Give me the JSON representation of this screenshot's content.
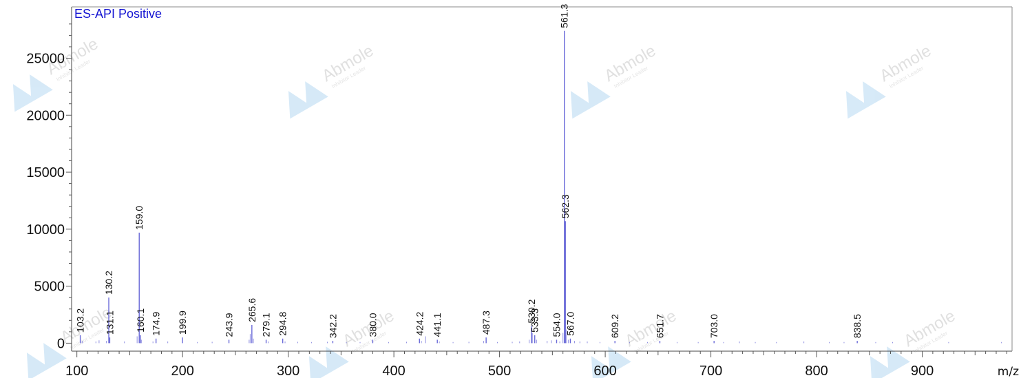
{
  "chart_data": {
    "type": "bar",
    "title": "ES-API Positive",
    "xlabel": "m/z",
    "ylabel": "",
    "xlim": [
      95,
      985
    ],
    "ylim": [
      -700,
      29500
    ],
    "x_ticks": [
      100,
      200,
      300,
      400,
      500,
      600,
      700,
      800,
      900
    ],
    "y_ticks": [
      0,
      5000,
      10000,
      15000,
      20000,
      25000
    ],
    "grid": false,
    "colors": {
      "title": "#1414d2",
      "peaks": "#6a6ad8",
      "axis": "#555555"
    },
    "labeled_peaks": [
      {
        "x": 103.2,
        "y": 700,
        "label": "103.2"
      },
      {
        "x": 130.2,
        "y": 4000,
        "label": "130.2"
      },
      {
        "x": 131.1,
        "y": 500,
        "label": "131.1"
      },
      {
        "x": 159.0,
        "y": 9700,
        "label": "159.0"
      },
      {
        "x": 160.1,
        "y": 700,
        "label": "160.1"
      },
      {
        "x": 174.9,
        "y": 400,
        "label": "174.9"
      },
      {
        "x": 199.9,
        "y": 500,
        "label": "199.9"
      },
      {
        "x": 243.9,
        "y": 300,
        "label": "243.9"
      },
      {
        "x": 265.6,
        "y": 1600,
        "label": "265.6"
      },
      {
        "x": 279.1,
        "y": 300,
        "label": "279.1"
      },
      {
        "x": 294.8,
        "y": 400,
        "label": "294.8"
      },
      {
        "x": 342.2,
        "y": 200,
        "label": "342.2"
      },
      {
        "x": 380.0,
        "y": 300,
        "label": "380.0"
      },
      {
        "x": 424.2,
        "y": 400,
        "label": "424.2"
      },
      {
        "x": 441.1,
        "y": 300,
        "label": "441.1"
      },
      {
        "x": 487.3,
        "y": 500,
        "label": "487.3"
      },
      {
        "x": 530.2,
        "y": 1500,
        "label": "530.2"
      },
      {
        "x": 533.3,
        "y": 700,
        "label": "533.3"
      },
      {
        "x": 554.0,
        "y": 300,
        "label": "554.0"
      },
      {
        "x": 561.3,
        "y": 27400,
        "label": "561.3"
      },
      {
        "x": 562.3,
        "y": 10700,
        "label": "562.3"
      },
      {
        "x": 567.0,
        "y": 400,
        "label": "567.0"
      },
      {
        "x": 609.2,
        "y": 200,
        "label": "609.2"
      },
      {
        "x": 651.7,
        "y": 200,
        "label": "651.7"
      },
      {
        "x": 703.0,
        "y": 200,
        "label": "703.0"
      },
      {
        "x": 838.5,
        "y": 200,
        "label": "838.5"
      }
    ],
    "minor_peaks": [
      {
        "x": 105,
        "y": 200
      },
      {
        "x": 118,
        "y": 150
      },
      {
        "x": 121,
        "y": 250
      },
      {
        "x": 128,
        "y": 200
      },
      {
        "x": 145,
        "y": 150
      },
      {
        "x": 157,
        "y": 600
      },
      {
        "x": 161,
        "y": 300
      },
      {
        "x": 172,
        "y": 150
      },
      {
        "x": 186,
        "y": 150
      },
      {
        "x": 214,
        "y": 100
      },
      {
        "x": 228,
        "y": 120
      },
      {
        "x": 263,
        "y": 300
      },
      {
        "x": 264,
        "y": 800
      },
      {
        "x": 267,
        "y": 400
      },
      {
        "x": 281,
        "y": 150
      },
      {
        "x": 297,
        "y": 150
      },
      {
        "x": 309,
        "y": 120
      },
      {
        "x": 322,
        "y": 100
      },
      {
        "x": 337,
        "y": 120
      },
      {
        "x": 355,
        "y": 100
      },
      {
        "x": 368,
        "y": 100
      },
      {
        "x": 395,
        "y": 100
      },
      {
        "x": 412,
        "y": 120
      },
      {
        "x": 426,
        "y": 200
      },
      {
        "x": 430,
        "y": 600
      },
      {
        "x": 443,
        "y": 150
      },
      {
        "x": 456,
        "y": 100
      },
      {
        "x": 471,
        "y": 120
      },
      {
        "x": 485,
        "y": 200
      },
      {
        "x": 498,
        "y": 100
      },
      {
        "x": 512,
        "y": 120
      },
      {
        "x": 519,
        "y": 150
      },
      {
        "x": 528,
        "y": 300
      },
      {
        "x": 531,
        "y": 900
      },
      {
        "x": 535,
        "y": 300
      },
      {
        "x": 545,
        "y": 200
      },
      {
        "x": 549,
        "y": 250
      },
      {
        "x": 557,
        "y": 150
      },
      {
        "x": 560,
        "y": 900
      },
      {
        "x": 563,
        "y": 1200
      },
      {
        "x": 565,
        "y": 300
      },
      {
        "x": 571,
        "y": 200
      },
      {
        "x": 576,
        "y": 150
      },
      {
        "x": 583,
        "y": 150
      },
      {
        "x": 595,
        "y": 100
      },
      {
        "x": 623,
        "y": 100
      },
      {
        "x": 640,
        "y": 100
      },
      {
        "x": 668,
        "y": 100
      },
      {
        "x": 688,
        "y": 100
      },
      {
        "x": 712,
        "y": 100
      },
      {
        "x": 727,
        "y": 150
      },
      {
        "x": 742,
        "y": 100
      },
      {
        "x": 762,
        "y": 100
      },
      {
        "x": 788,
        "y": 150
      },
      {
        "x": 812,
        "y": 100
      },
      {
        "x": 826,
        "y": 100
      },
      {
        "x": 856,
        "y": 100
      },
      {
        "x": 872,
        "y": 100
      },
      {
        "x": 925,
        "y": 100
      },
      {
        "x": 975,
        "y": 100
      }
    ],
    "watermark": {
      "text": "Abmole",
      "subtext": "Inhibitor Leader"
    }
  }
}
